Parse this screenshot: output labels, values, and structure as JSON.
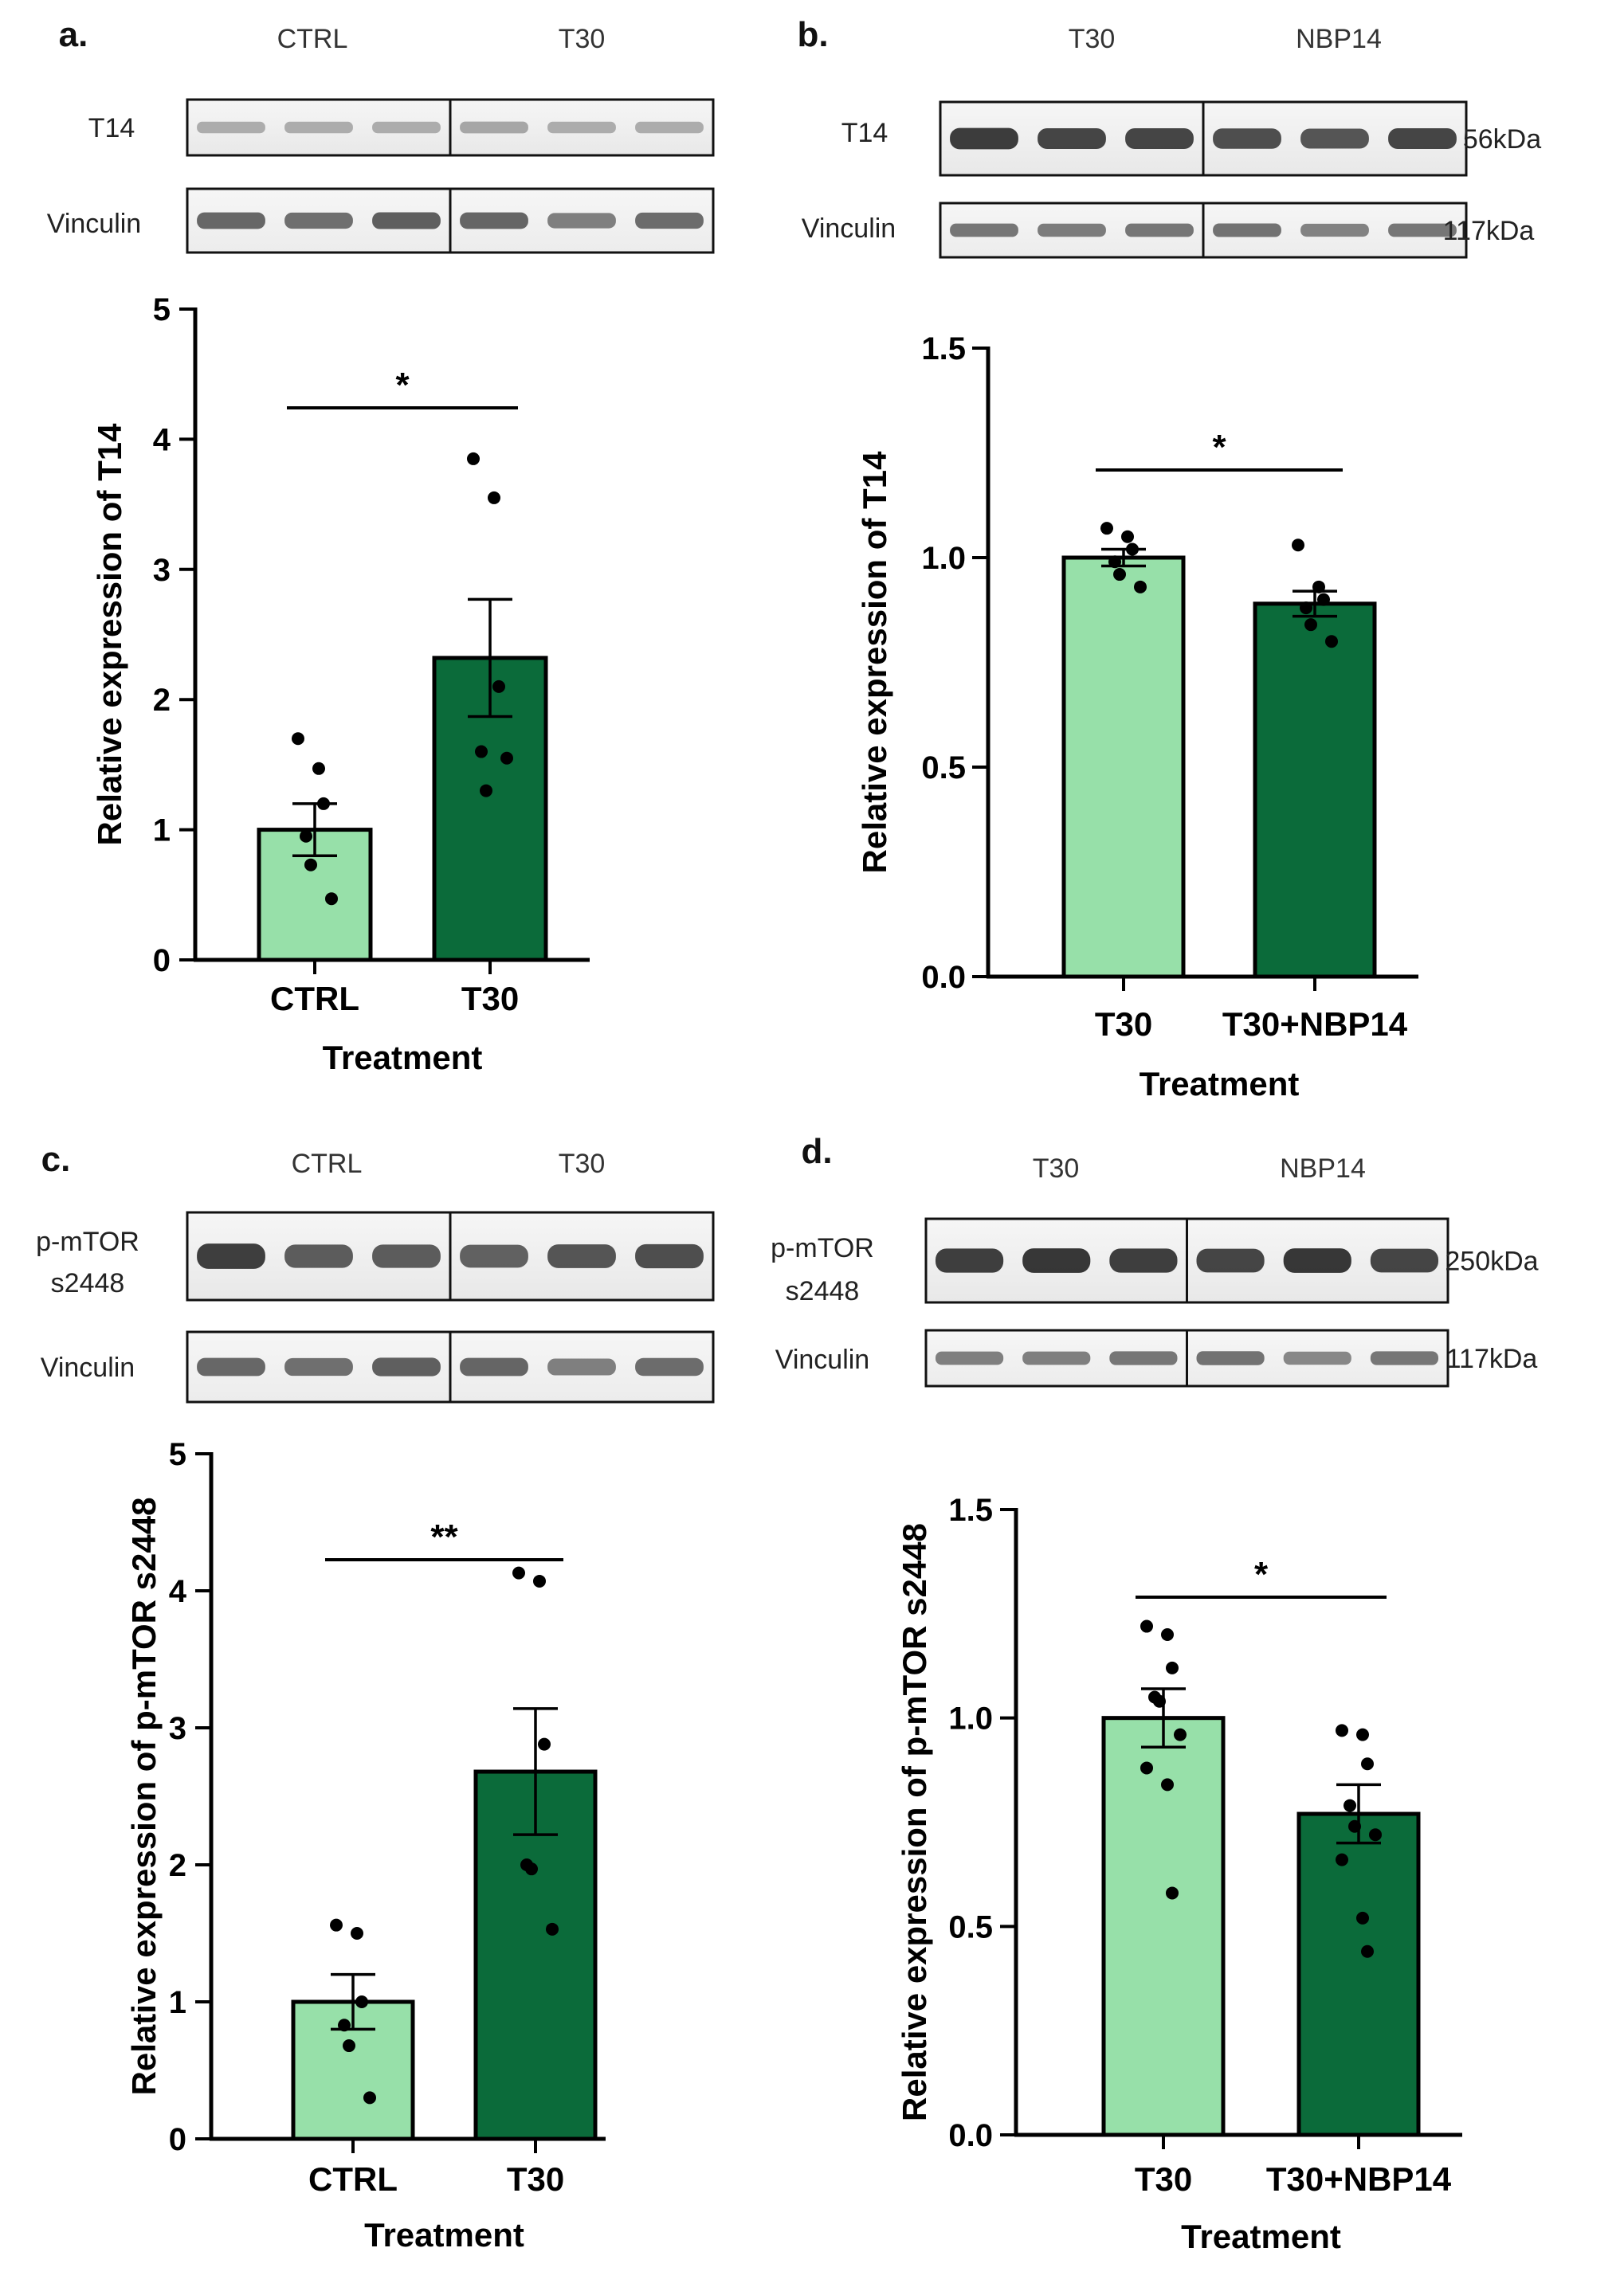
{
  "figure": {
    "panels": [
      {
        "id": "a",
        "letter": "a.",
        "blot": {
          "groups": [
            "CTRL",
            "T30"
          ],
          "rows": [
            {
              "label_lines": [
                "T14"
              ],
              "kda": "",
              "intensities": [
                0.22,
                0.22,
                0.22,
                0.26,
                0.22,
                0.22
              ]
            },
            {
              "label_lines": [
                "Vinculin"
              ],
              "kda": "",
              "intensities": [
                0.65,
                0.6,
                0.7,
                0.66,
                0.5,
                0.62
              ]
            }
          ]
        },
        "chart": {
          "ylabel": "Relative expression of T14",
          "yticks": [
            "0",
            "1",
            "2",
            "3",
            "4",
            "5"
          ],
          "xlabel": "Treatment",
          "sig": "*"
        }
      },
      {
        "id": "b",
        "letter": "b.",
        "blot": {
          "groups": [
            "T30",
            "NBP14"
          ],
          "rows": [
            {
              "label_lines": [
                "T14"
              ],
              "kda": "56kDa",
              "intensities": [
                0.92,
                0.86,
                0.86,
                0.8,
                0.76,
                0.86
              ]
            },
            {
              "label_lines": [
                "Vinculin"
              ],
              "kda": "117kDa",
              "intensities": [
                0.55,
                0.52,
                0.55,
                0.58,
                0.48,
                0.55
              ]
            }
          ]
        },
        "chart": {
          "ylabel": "Relative expression of T14",
          "yticks": [
            "0.0",
            "0.5",
            "1.0",
            "1.5"
          ],
          "xlabel": "Treatment",
          "sig": "*"
        }
      },
      {
        "id": "c",
        "letter": "c.",
        "blot": {
          "groups": [
            "CTRL",
            "T30"
          ],
          "rows": [
            {
              "label_lines": [
                "p-mTOR",
                "s2448"
              ],
              "kda": "",
              "intensities": [
                0.9,
                0.72,
                0.72,
                0.68,
                0.76,
                0.8
              ]
            },
            {
              "label_lines": [
                "Vinculin"
              ],
              "kda": "",
              "intensities": [
                0.65,
                0.6,
                0.7,
                0.66,
                0.5,
                0.62
              ]
            }
          ]
        },
        "chart": {
          "ylabel": "Relative expression of p-mTOR s2448",
          "yticks": [
            "0",
            "1",
            "2",
            "3",
            "4",
            "5"
          ],
          "xlabel": "Treatment",
          "sig": "**"
        }
      },
      {
        "id": "d",
        "letter": "d.",
        "blot": {
          "groups": [
            "T30",
            "NBP14"
          ],
          "rows": [
            {
              "label_lines": [
                "p-mTOR",
                "s2448"
              ],
              "kda": "250kDa",
              "intensities": [
                0.9,
                0.95,
                0.9,
                0.86,
                0.95,
                0.86
              ]
            },
            {
              "label_lines": [
                "Vinculin"
              ],
              "kda": "117kDa",
              "intensities": [
                0.5,
                0.5,
                0.55,
                0.58,
                0.45,
                0.55
              ]
            }
          ]
        },
        "chart": {
          "ylabel": "Relative expression of p-mTOR s2448",
          "yticks": [
            "0.0",
            "0.5",
            "1.0",
            "1.5"
          ],
          "xlabel": "Treatment",
          "sig": "*"
        }
      }
    ]
  },
  "chart_data": [
    {
      "panel": "a",
      "type": "bar",
      "categories": [
        "CTRL",
        "T30"
      ],
      "values": [
        1.0,
        2.32
      ],
      "sem": [
        0.2,
        0.45
      ],
      "points": [
        [
          1.7,
          1.47,
          1.2,
          0.95,
          0.73,
          0.47
        ],
        [
          3.85,
          3.55,
          2.1,
          1.6,
          1.3,
          1.55
        ]
      ],
      "colors": [
        "#97e0a9",
        "#0b6b3a"
      ],
      "xlabel": "Treatment",
      "ylabel": "Relative expression of T14",
      "ylim": [
        0,
        5
      ],
      "significance": "*"
    },
    {
      "panel": "b",
      "type": "bar",
      "categories": [
        "T30",
        "T30+NBP14"
      ],
      "values": [
        1.0,
        0.89
      ],
      "sem": [
        0.02,
        0.03
      ],
      "points": [
        [
          1.07,
          1.05,
          1.02,
          0.99,
          0.96,
          0.93
        ],
        [
          1.03,
          0.93,
          0.9,
          0.88,
          0.84,
          0.8
        ]
      ],
      "colors": [
        "#97e0a9",
        "#0b6b3a"
      ],
      "xlabel": "Treatment",
      "ylabel": "Relative expression of T14",
      "ylim": [
        0,
        1.5
      ],
      "significance": "*"
    },
    {
      "panel": "c",
      "type": "bar",
      "categories": [
        "CTRL",
        "T30"
      ],
      "values": [
        1.0,
        2.68
      ],
      "sem": [
        0.2,
        0.46
      ],
      "points": [
        [
          1.56,
          1.5,
          1.0,
          0.83,
          0.68,
          0.3
        ],
        [
          4.13,
          4.07,
          2.88,
          2.0,
          1.97,
          1.53
        ]
      ],
      "colors": [
        "#97e0a9",
        "#0b6b3a"
      ],
      "xlabel": "Treatment",
      "ylabel": "Relative expression of p-mTOR s2448",
      "ylim": [
        0,
        5
      ],
      "significance": "**"
    },
    {
      "panel": "d",
      "type": "bar",
      "categories": [
        "T30",
        "T30+NBP14"
      ],
      "values": [
        1.0,
        0.77
      ],
      "sem": [
        0.07,
        0.07
      ],
      "points": [
        [
          1.22,
          1.2,
          1.12,
          1.05,
          1.04,
          0.96,
          0.88,
          0.84,
          0.58
        ],
        [
          0.97,
          0.96,
          0.89,
          0.79,
          0.74,
          0.72,
          0.66,
          0.52,
          0.44
        ]
      ],
      "colors": [
        "#97e0a9",
        "#0b6b3a"
      ],
      "xlabel": "Treatment",
      "ylabel": "Relative expression of p-mTOR s2448",
      "ylim": [
        0,
        1.5
      ],
      "significance": "*"
    }
  ]
}
